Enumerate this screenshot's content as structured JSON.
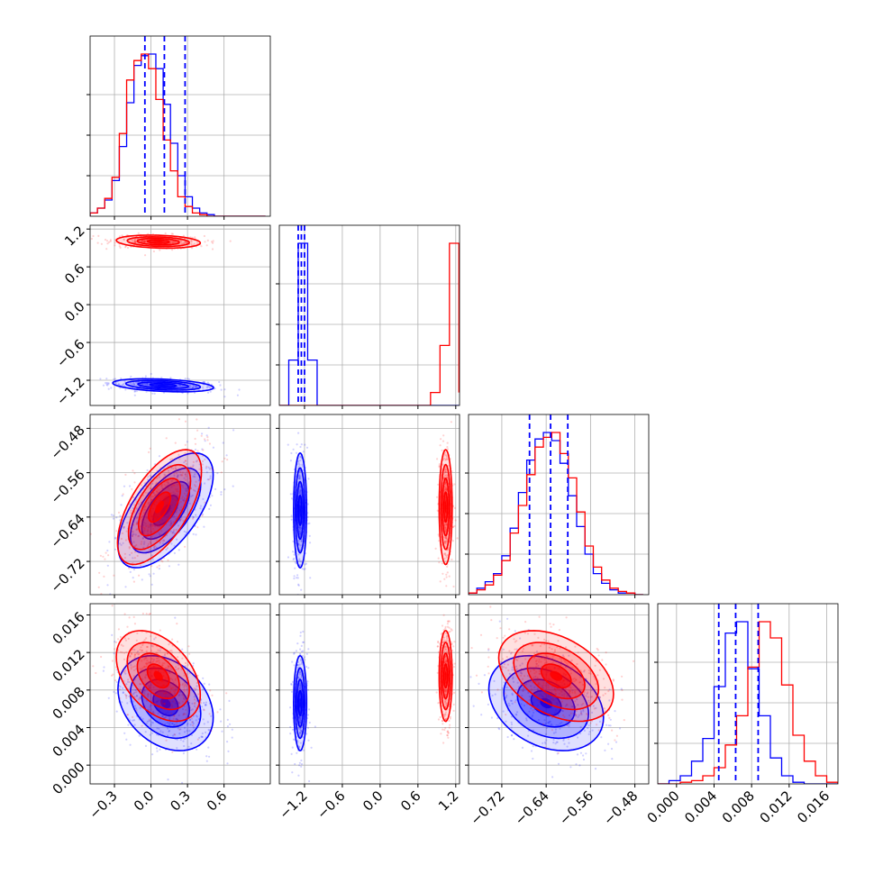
{
  "colors": {
    "blue": "#0000ff",
    "red": "#ff0000",
    "grid": "#b0b0b0",
    "frame": "#000000"
  },
  "chart_data": {
    "type": "corner",
    "grid": true,
    "series": [
      {
        "color": "#0000ff"
      },
      {
        "color": "#ff0000"
      }
    ],
    "params": [
      {
        "range": [
          -0.5,
          0.98
        ],
        "ticks": [
          -0.3,
          0.0,
          0.3,
          0.6
        ],
        "tick_labels": [
          "−0.3",
          "0.0",
          "0.3",
          "0.6"
        ]
      },
      {
        "range": [
          -1.6,
          1.26
        ],
        "ticks": [
          -1.2,
          -0.6,
          0.0,
          0.6,
          1.2
        ],
        "tick_labels": [
          "−1.2",
          "−0.6",
          "0.0",
          "0.6",
          "1.2"
        ]
      },
      {
        "range": [
          -0.78,
          -0.455
        ],
        "ticks": [
          -0.72,
          -0.64,
          -0.56,
          -0.48
        ],
        "tick_labels": [
          "−0.72",
          "−0.64",
          "−0.56",
          "−0.48"
        ]
      },
      {
        "range": [
          -0.002,
          0.0172
        ],
        "ticks": [
          0.0,
          0.004,
          0.008,
          0.012,
          0.016
        ],
        "tick_labels": [
          "0.000",
          "0.004",
          "0.008",
          "0.012",
          "0.016"
        ]
      }
    ],
    "marginals": [
      {
        "quantile_lines": [
          -0.05,
          0.11,
          0.28
        ],
        "bins": [
          -0.5,
          -0.44,
          -0.38,
          -0.32,
          -0.26,
          -0.2,
          -0.14,
          -0.08,
          -0.02,
          0.04,
          0.1,
          0.16,
          0.22,
          0.28,
          0.34,
          0.4,
          0.46,
          0.52,
          0.58,
          0.64,
          0.7,
          0.76,
          0.82,
          0.88,
          0.94
        ],
        "blue": [
          0.02,
          0.05,
          0.1,
          0.22,
          0.43,
          0.7,
          0.93,
          0.99,
          1.0,
          0.91,
          0.69,
          0.45,
          0.25,
          0.12,
          0.05,
          0.02,
          0.01,
          0,
          0,
          0,
          0,
          0,
          0,
          0
        ],
        "red": [
          0.02,
          0.05,
          0.11,
          0.24,
          0.51,
          0.84,
          0.96,
          1.0,
          0.91,
          0.72,
          0.47,
          0.28,
          0.12,
          0.06,
          0.02,
          0.01,
          0,
          0,
          0,
          0,
          0,
          0,
          0,
          0
        ]
      },
      {
        "quantile_lines": [
          -1.3,
          -1.25,
          -1.2
        ],
        "bins": [
          -1.6,
          -1.45,
          -1.3,
          -1.15,
          -1.0,
          -0.85,
          -0.7,
          -0.55,
          -0.4,
          -0.25,
          -0.1,
          0.05,
          0.2,
          0.35,
          0.5,
          0.65,
          0.8,
          0.95,
          1.1,
          1.25
        ],
        "blue": [
          0,
          0.28,
          1.0,
          0.28,
          0,
          0,
          0,
          0,
          0,
          0,
          0,
          0,
          0,
          0,
          0,
          0,
          0,
          0,
          0
        ],
        "red": [
          0,
          0,
          0,
          0,
          0,
          0,
          0,
          0,
          0,
          0,
          0,
          0,
          0,
          0,
          0,
          0,
          0.08,
          0.37,
          1.0,
          0.08
        ]
      },
      {
        "quantile_lines": [
          -0.67,
          -0.632,
          -0.601
        ],
        "bins": [
          -0.78,
          -0.765,
          -0.75,
          -0.735,
          -0.72,
          -0.705,
          -0.69,
          -0.675,
          -0.66,
          -0.645,
          -0.63,
          -0.615,
          -0.6,
          -0.585,
          -0.57,
          -0.555,
          -0.54,
          -0.525,
          -0.51,
          -0.495,
          -0.48,
          -0.465
        ],
        "blue": [
          0.01,
          0.04,
          0.08,
          0.13,
          0.24,
          0.41,
          0.63,
          0.83,
          0.96,
          1.0,
          0.95,
          0.81,
          0.61,
          0.42,
          0.25,
          0.13,
          0.07,
          0.03,
          0.01,
          0.01,
          0
        ],
        "red": [
          0.01,
          0.03,
          0.06,
          0.12,
          0.21,
          0.38,
          0.55,
          0.74,
          0.91,
          0.97,
          1.0,
          0.87,
          0.72,
          0.51,
          0.3,
          0.17,
          0.09,
          0.04,
          0.02,
          0.01,
          0
        ]
      },
      {
        "quantile_lines": [
          0.0045,
          0.0063,
          0.0087
        ],
        "bins": [
          -0.002,
          -0.0008,
          0.0004,
          0.0016,
          0.0028,
          0.004,
          0.0052,
          0.0064,
          0.0076,
          0.0088,
          0.01,
          0.0112,
          0.0124,
          0.0136,
          0.0148,
          0.016,
          0.0172
        ],
        "blue": [
          0,
          0.02,
          0.05,
          0.14,
          0.28,
          0.6,
          0.93,
          1.0,
          0.71,
          0.42,
          0.16,
          0.05,
          0.01,
          0,
          0,
          0
        ],
        "red": [
          0,
          0,
          0.01,
          0.02,
          0.05,
          0.1,
          0.24,
          0.42,
          0.72,
          1.0,
          0.9,
          0.61,
          0.3,
          0.14,
          0.05,
          0.01
        ]
      }
    ],
    "joints": [
      {
        "x": 0,
        "y": 1,
        "blue": {
          "mean": [
            0.1,
            -1.28
          ],
          "sd": [
            0.18,
            0.045
          ],
          "rho": -0.35
        },
        "red": {
          "mean": [
            0.06,
            1.0
          ],
          "sd": [
            0.15,
            0.045
          ],
          "rho": -0.2
        }
      },
      {
        "x": 0,
        "y": 2,
        "blue": {
          "mean": [
            0.12,
            -0.628
          ],
          "sd": [
            0.17,
            0.045
          ],
          "rho": 0.62
        },
        "red": {
          "mean": [
            0.07,
            -0.622
          ],
          "sd": [
            0.15,
            0.045
          ],
          "rho": 0.62
        }
      },
      {
        "x": 1,
        "y": 2,
        "blue": {
          "mean": [
            -1.27,
            -0.628
          ],
          "sd": [
            0.045,
            0.045
          ],
          "rho": 0.0
        },
        "red": {
          "mean": [
            1.04,
            -0.622
          ],
          "sd": [
            0.045,
            0.045
          ],
          "rho": 0.0
        }
      },
      {
        "x": 0,
        "y": 3,
        "blue": {
          "mean": [
            0.12,
            0.0066
          ],
          "sd": [
            0.17,
            0.0022
          ],
          "rho": -0.3
        },
        "red": {
          "mean": [
            0.06,
            0.0095
          ],
          "sd": [
            0.15,
            0.0021
          ],
          "rho": -0.42
        }
      },
      {
        "x": 1,
        "y": 3,
        "blue": {
          "mean": [
            -1.27,
            0.0066
          ],
          "sd": [
            0.045,
            0.0022
          ],
          "rho": 0.0
        },
        "red": {
          "mean": [
            1.04,
            0.0095
          ],
          "sd": [
            0.045,
            0.0021
          ],
          "rho": 0.0
        }
      },
      {
        "x": 2,
        "y": 3,
        "blue": {
          "mean": [
            -0.64,
            0.0066
          ],
          "sd": [
            0.045,
            0.0022
          ],
          "rho": -0.3
        },
        "red": {
          "mean": [
            -0.622,
            0.0095
          ],
          "sd": [
            0.045,
            0.0021
          ],
          "rho": -0.4
        }
      }
    ]
  }
}
